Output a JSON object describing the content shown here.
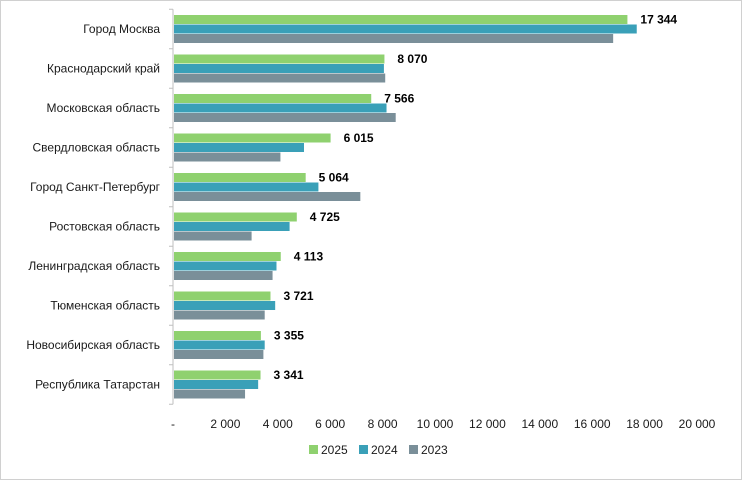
{
  "chart_data": {
    "type": "bar",
    "orientation": "horizontal",
    "title": "",
    "xlabel": "",
    "ylabel": "",
    "categories": [
      "Город Москва",
      "Краснодарский край",
      "Московская область",
      "Свердловская область",
      "Город Санкт-Петербург",
      "Ростовская область",
      "Ленинградская область",
      "Тюменская область",
      "Новосибирская область",
      "Республика Татарстан"
    ],
    "series": [
      {
        "name": "2025",
        "color": "#8fd16f",
        "values": [
          17344,
          8070,
          7566,
          6015,
          5064,
          4725,
          4113,
          3721,
          3355,
          3341
        ]
      },
      {
        "name": "2024",
        "color": "#3aa0b8",
        "values": [
          17700,
          8050,
          8150,
          5000,
          5550,
          4450,
          3950,
          3900,
          3500,
          3250
        ]
      },
      {
        "name": "2023",
        "color": "#7a8f99",
        "values": [
          16800,
          8100,
          8500,
          4100,
          7150,
          3000,
          3800,
          3500,
          3450,
          2750
        ]
      }
    ],
    "data_labels": [
      "17 344",
      "8 070",
      "7 566",
      "6 015",
      "5 064",
      "4 725",
      "4 113",
      "3 721",
      "3 355",
      "3 341"
    ],
    "xlim": [
      0,
      20000
    ],
    "xticks": [
      0,
      2000,
      4000,
      6000,
      8000,
      10000,
      12000,
      14000,
      16000,
      18000,
      20000
    ],
    "xtick_labels": [
      "-",
      "2 000",
      "4 000",
      "6 000",
      "8 000",
      "10 000",
      "12 000",
      "14 000",
      "16 000",
      "18 000",
      "20 000"
    ],
    "legend": {
      "position": "bottom",
      "entries": [
        "2025",
        "2024",
        "2023"
      ]
    },
    "grid": false
  }
}
